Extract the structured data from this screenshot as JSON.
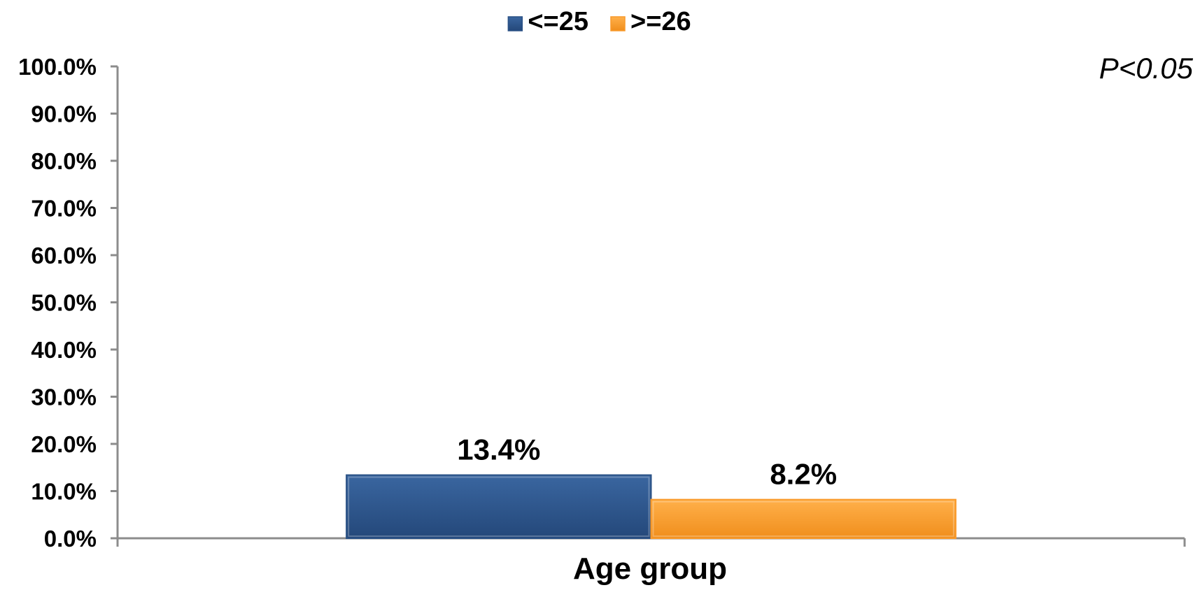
{
  "chart_data": {
    "type": "bar",
    "categories": [
      "Age group"
    ],
    "series": [
      {
        "name": "<=25",
        "values": [
          13.4
        ],
        "label": "13.4%",
        "color": "#2B5286"
      },
      {
        "name": ">=26",
        "values": [
          8.2
        ],
        "label": "8.2%",
        "color": "#F99A2B"
      }
    ],
    "xlabel": "Age group",
    "ylabel": "",
    "ylim": [
      0,
      100
    ],
    "yticks": [
      "0.0%",
      "10.0%",
      "20.0%",
      "30.0%",
      "40.0%",
      "50.0%",
      "60.0%",
      "70.0%",
      "80.0%",
      "90.0%",
      "100.0%"
    ],
    "annotation": "P<0.05",
    "legend_position": "top-center",
    "grid": false
  }
}
